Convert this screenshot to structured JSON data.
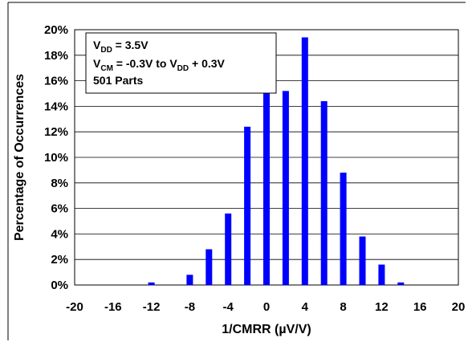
{
  "chart_data": {
    "type": "bar",
    "xlabel": "1/CMRR (µV/V)",
    "ylabel": "Percentage of Occurrences",
    "x": [
      -20,
      -18,
      -16,
      -14,
      -12,
      -10,
      -8,
      -6,
      -4,
      -2,
      0,
      2,
      4,
      6,
      8,
      10,
      12,
      14,
      16,
      18,
      20
    ],
    "values": [
      0,
      0,
      0,
      0,
      0.2,
      0,
      0.8,
      2.8,
      5.6,
      12.4,
      15.0,
      15.2,
      19.4,
      14.4,
      8.8,
      3.8,
      1.6,
      0.2,
      0,
      0,
      0
    ],
    "xlim": [
      -20,
      20
    ],
    "ylim": [
      0,
      20
    ],
    "x_ticks": [
      -20,
      -16,
      -12,
      -8,
      -4,
      0,
      4,
      8,
      12,
      16,
      20
    ],
    "x_tick_labels": [
      "-20",
      "-16",
      "-12",
      "-8",
      "-4",
      "0",
      "4",
      "8",
      "12",
      "16",
      "20"
    ],
    "y_ticks": [
      0,
      2,
      4,
      6,
      8,
      10,
      12,
      14,
      16,
      18,
      20
    ],
    "y_tick_labels": [
      "0%",
      "2%",
      "4%",
      "6%",
      "8%",
      "10%",
      "12%",
      "14%",
      "16%",
      "18%",
      "20%"
    ],
    "grid": "horizontal",
    "bar_color": "#0000ff",
    "legend_box": {
      "line1": {
        "main": "V",
        "sub": "DD",
        "rest": " = 3.5V"
      },
      "line2": {
        "main": "V",
        "sub": "CM",
        "mid": " = -0.3V to V",
        "sub2": "DD",
        "rest": " + 0.3V"
      },
      "line3": "501 Parts"
    }
  }
}
